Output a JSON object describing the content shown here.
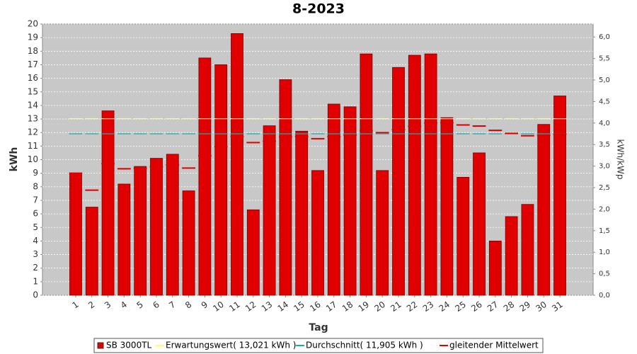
{
  "chart_data": {
    "type": "bar",
    "title": "8-2023",
    "x_label": "Tag",
    "y_label": "kWh",
    "y2_label": "kWh/kWp",
    "categories": [
      "1",
      "2",
      "3",
      "4",
      "5",
      "6",
      "7",
      "8",
      "9",
      "10",
      "11",
      "12",
      "13",
      "14",
      "15",
      "16",
      "17",
      "18",
      "19",
      "20",
      "21",
      "22",
      "23",
      "24",
      "25",
      "26",
      "27",
      "28",
      "29",
      "30",
      "31"
    ],
    "series": [
      {
        "name": "SB 3000TL",
        "color": "#e00000",
        "kind": "bar",
        "values": [
          9.0,
          6.5,
          13.6,
          8.2,
          9.5,
          10.1,
          10.4,
          7.7,
          17.5,
          17.0,
          19.3,
          6.3,
          12.5,
          15.9,
          12.1,
          9.2,
          14.1,
          13.9,
          17.8,
          9.2,
          16.8,
          17.7,
          17.8,
          13.1,
          8.7,
          10.5,
          4.0,
          5.8,
          6.7,
          12.6,
          14.7
        ]
      },
      {
        "name": "Erwartungswert( 13,021 kWh )",
        "color": "#ffff66",
        "kind": "dash",
        "values": [
          13.021,
          13.021,
          13.021,
          13.021,
          13.021,
          13.021,
          13.021,
          13.021,
          13.021,
          13.021,
          13.021,
          13.021,
          13.021,
          13.021,
          13.021,
          13.021,
          13.021,
          13.021,
          13.021,
          13.021,
          13.021,
          13.021,
          13.021,
          13.021,
          13.021,
          13.021,
          13.021,
          13.021,
          13.021,
          13.021,
          13.021
        ]
      },
      {
        "name": "Durchschnitt( 11,905 kWh )",
        "color": "#22aaaa",
        "kind": "dash",
        "values": [
          11.905,
          11.905,
          11.905,
          11.905,
          11.905,
          11.905,
          11.905,
          11.905,
          11.905,
          11.905,
          11.905,
          11.905,
          11.905,
          11.905,
          11.905,
          11.905,
          11.905,
          11.905,
          11.905,
          11.905,
          11.905,
          11.905,
          11.905,
          11.905,
          11.905,
          11.905,
          11.905,
          11.905,
          11.905,
          11.905,
          11.905
        ]
      },
      {
        "name": "gleitender Mittelwert",
        "color": "#dd0000",
        "kind": "dash",
        "values": [
          9.0,
          7.75,
          9.7,
          9.33,
          9.36,
          9.48,
          9.61,
          9.38,
          10.28,
          10.95,
          11.71,
          11.26,
          11.35,
          11.68,
          11.71,
          11.55,
          11.7,
          11.82,
          12.14,
          11.99,
          12.22,
          12.47,
          12.7,
          12.72,
          12.56,
          12.48,
          12.16,
          11.94,
          11.76,
          11.78,
          11.88
        ]
      }
    ],
    "ylim": [
      0,
      20
    ],
    "yticks": [
      0,
      1,
      2,
      3,
      4,
      5,
      6,
      7,
      8,
      9,
      10,
      11,
      12,
      13,
      14,
      15,
      16,
      17,
      18,
      19,
      20
    ],
    "y2lim": [
      0,
      6.3
    ],
    "y2ticks": [
      {
        "value": 0,
        "label": "0,0"
      },
      {
        "value": 0.5,
        "label": "0,5"
      },
      {
        "value": 1,
        "label": "1,0"
      },
      {
        "value": 1.5,
        "label": "1,5"
      },
      {
        "value": 2,
        "label": "2,0"
      },
      {
        "value": 2.5,
        "label": "2,5"
      },
      {
        "value": 3,
        "label": "3,0"
      },
      {
        "value": 3.5,
        "label": "3,5"
      },
      {
        "value": 4,
        "label": "4,0"
      },
      {
        "value": 4.5,
        "label": "4,5"
      },
      {
        "value": 5,
        "label": "5,0"
      },
      {
        "value": 5.5,
        "label": "5,5"
      },
      {
        "value": 6,
        "label": "6,0"
      }
    ],
    "grid": true
  }
}
